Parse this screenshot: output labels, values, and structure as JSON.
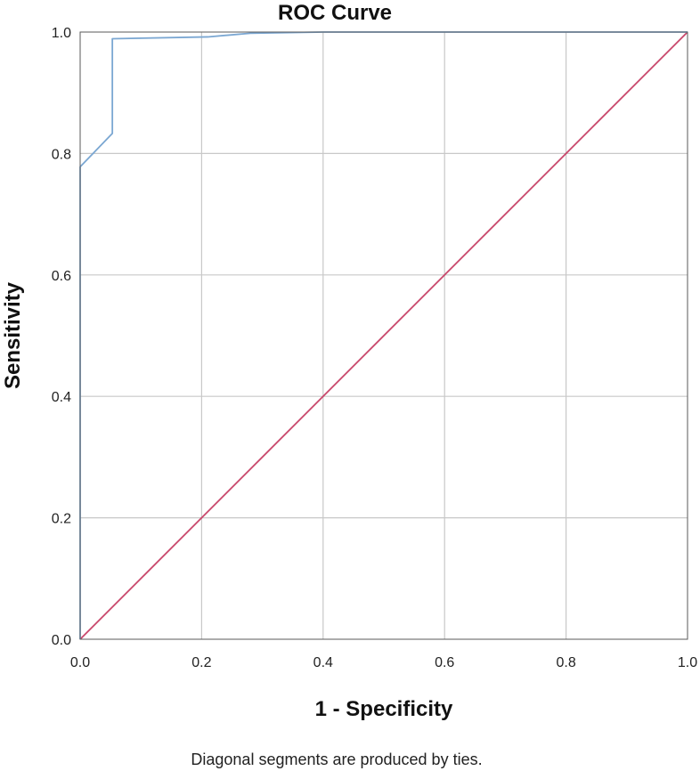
{
  "chart_data": {
    "type": "line",
    "title": "ROC Curve",
    "xlabel": "1 - Specificity",
    "ylabel": "Sensitivity",
    "footnote": "Diagonal segments are produced by ties.",
    "xlim": [
      0.0,
      1.0
    ],
    "ylim": [
      0.0,
      1.0
    ],
    "xticks": [
      "0.0",
      "0.2",
      "0.4",
      "0.6",
      "0.8",
      "1.0"
    ],
    "yticks": [
      "0.0",
      "0.2",
      "0.4",
      "0.6",
      "0.8",
      "1.0"
    ],
    "grid": true,
    "series": [
      {
        "color": "#7ba7d2",
        "x": [
          0.0,
          0.0,
          0.053,
          0.053,
          0.21,
          0.28,
          0.4,
          0.6,
          0.8,
          1.0
        ],
        "y": [
          0.0,
          0.778,
          0.833,
          0.989,
          0.992,
          0.998,
          1.0,
          1.0,
          1.0,
          1.0
        ]
      },
      {
        "color": "#c8466a",
        "x": [
          0.0,
          1.0
        ],
        "y": [
          0.0,
          1.0
        ]
      }
    ]
  }
}
